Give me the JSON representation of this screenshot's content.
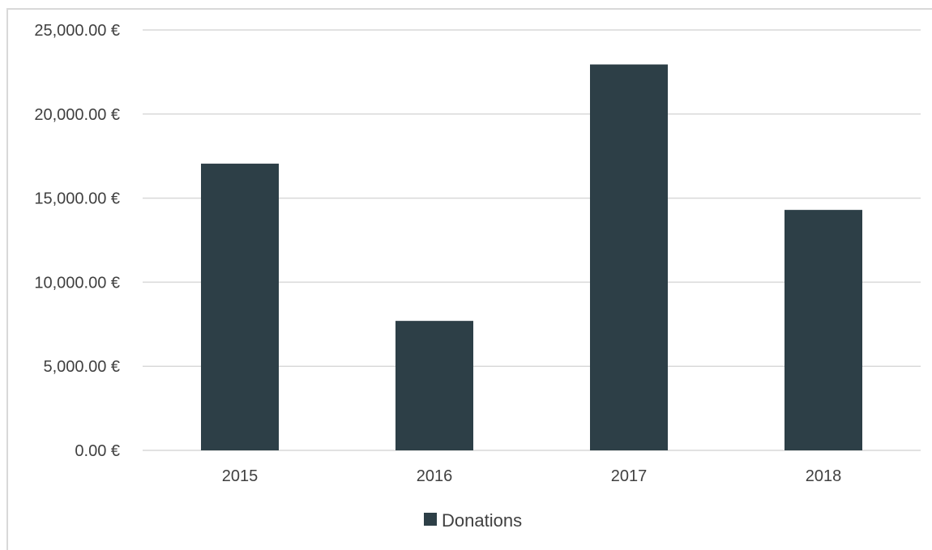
{
  "chart_data": {
    "type": "bar",
    "title": "",
    "xlabel": "",
    "ylabel": "",
    "categories": [
      "2015",
      "2016",
      "2017",
      "2018"
    ],
    "series": [
      {
        "name": "Donations",
        "values": [
          17050,
          7700,
          22950,
          14300
        ],
        "color": "#2d3f47"
      }
    ],
    "ylim": [
      0,
      25000
    ],
    "yticks": [
      0,
      5000,
      10000,
      15000,
      20000,
      25000
    ],
    "ytick_labels": [
      "0.00 €",
      "5,000.00 €",
      "10,000.00 €",
      "15,000.00 €",
      "20,000.00 €",
      "25,000.00 €"
    ],
    "grid": true,
    "legend": "bottom"
  }
}
